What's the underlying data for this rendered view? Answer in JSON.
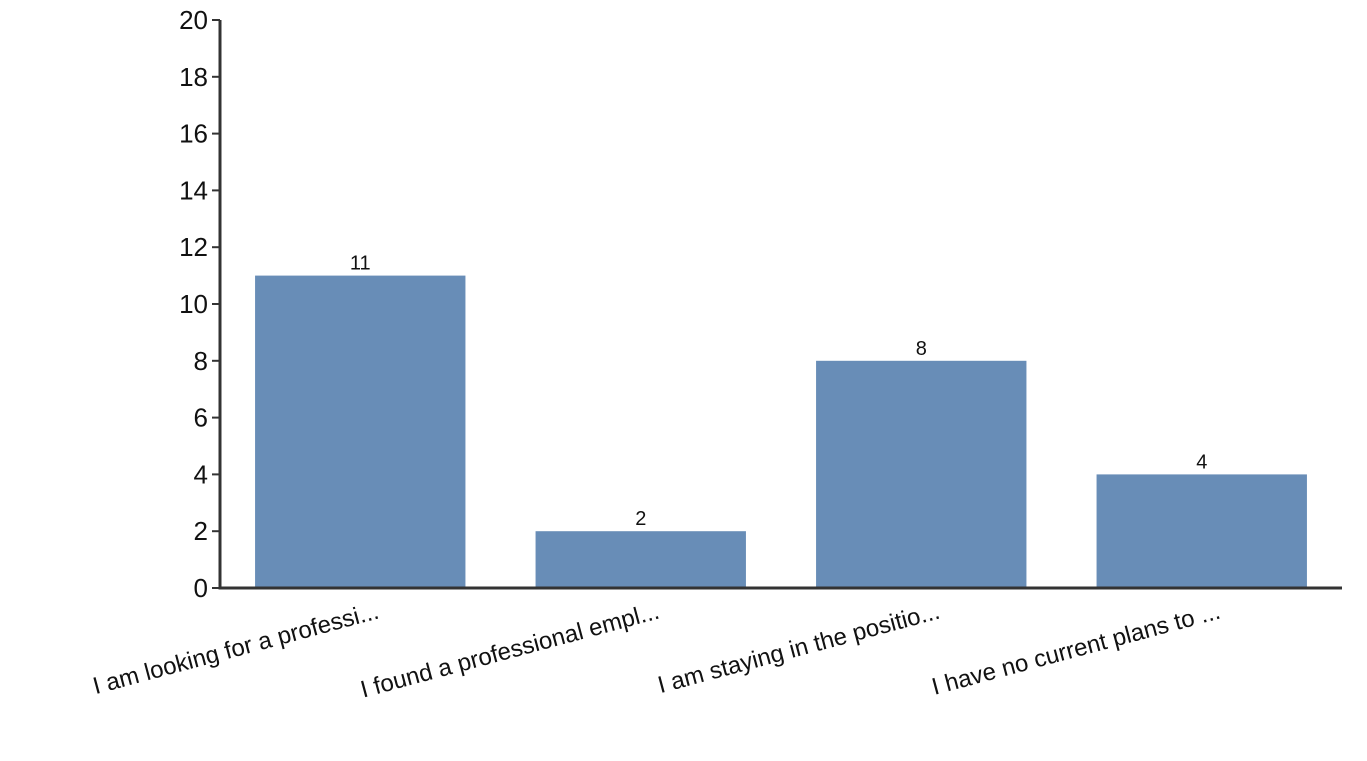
{
  "chart_data": {
    "type": "bar",
    "title": "",
    "xlabel": "",
    "ylabel": "",
    "categories": [
      "I am looking for a professi...",
      "I found a professional empl...",
      "I am staying in the positio...",
      "I have no current plans to ..."
    ],
    "values": [
      11,
      2,
      8,
      4
    ],
    "ylim": [
      0,
      20
    ],
    "yticks": [
      0,
      2,
      4,
      6,
      8,
      10,
      12,
      14,
      16,
      18,
      20
    ],
    "grid": false,
    "legend": "none",
    "colors": {
      "bar": "#688db7",
      "axis": "#333333",
      "text": "#111111"
    }
  }
}
